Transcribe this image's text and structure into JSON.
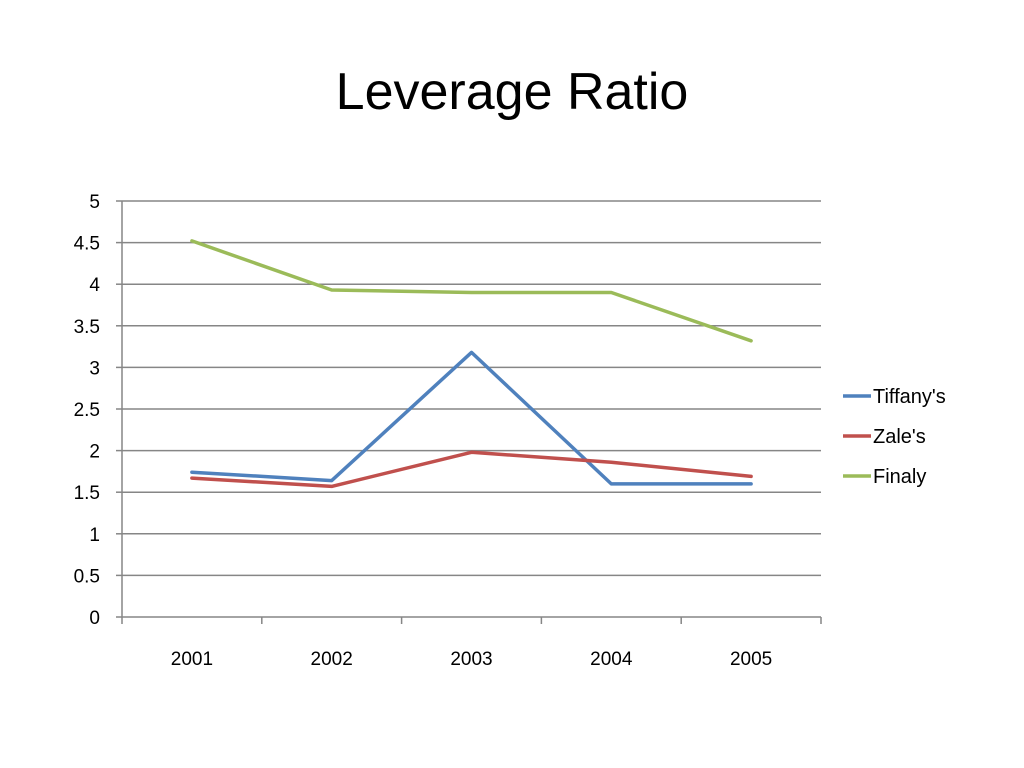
{
  "slide": {
    "title": "Leverage Ratio"
  },
  "chart_data": {
    "type": "line",
    "title": "Leverage Ratio",
    "xlabel": "",
    "ylabel": "",
    "categories": [
      "2001",
      "2002",
      "2003",
      "2004",
      "2005"
    ],
    "ylim": [
      0,
      5
    ],
    "yticks": [
      0,
      0.5,
      1,
      1.5,
      2,
      2.5,
      3,
      3.5,
      4,
      4.5,
      5
    ],
    "ytick_labels": [
      "0",
      "0.5",
      "1",
      "1.5",
      "2",
      "2.5",
      "3",
      "3.5",
      "4",
      "4.5",
      "5"
    ],
    "grid": true,
    "legend_position": "right",
    "series": [
      {
        "name": "Tiffany's",
        "color": "#4f81bd",
        "values": [
          1.74,
          1.64,
          3.18,
          1.6,
          1.6
        ]
      },
      {
        "name": "Zale's",
        "color": "#c0504d",
        "values": [
          1.67,
          1.57,
          1.98,
          1.86,
          1.69
        ]
      },
      {
        "name": "Finaly",
        "color": "#9bbb59",
        "values": [
          4.52,
          3.93,
          3.9,
          3.9,
          3.32
        ]
      }
    ]
  }
}
